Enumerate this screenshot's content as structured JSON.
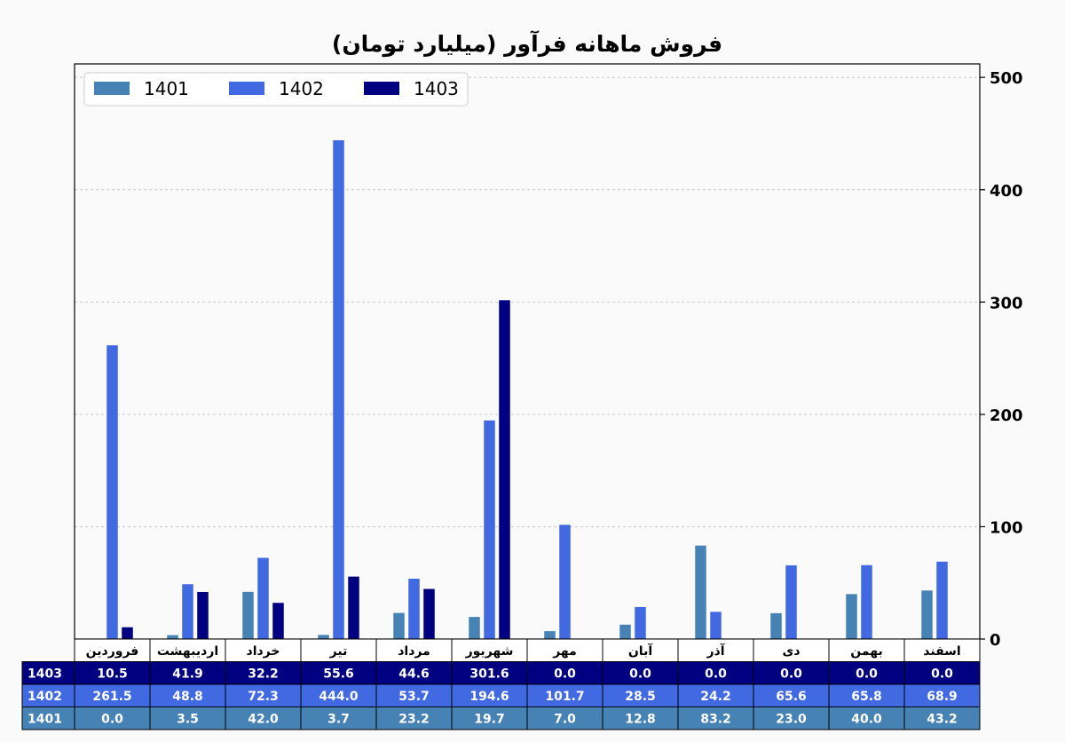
{
  "chart_data": {
    "type": "bar",
    "title": "فروش ماهانه فرآور (میلیارد تومان)",
    "categories": [
      "فروردین",
      "اردیبهشت",
      "خرداد",
      "تیر",
      "مرداد",
      "شهریور",
      "مهر",
      "آبان",
      "آذر",
      "دی",
      "بهمن",
      "اسفند"
    ],
    "series": [
      {
        "name": "1401",
        "color": "#4682b4",
        "values": [
          0.0,
          3.5,
          42.0,
          3.7,
          23.2,
          19.7,
          7.0,
          12.8,
          83.2,
          23.0,
          40.0,
          43.2
        ]
      },
      {
        "name": "1402",
        "color": "#4169e1",
        "values": [
          261.5,
          48.8,
          72.3,
          444.0,
          53.7,
          194.6,
          101.7,
          28.5,
          24.2,
          65.6,
          65.8,
          68.9
        ]
      },
      {
        "name": "1403",
        "color": "#000080",
        "values": [
          10.5,
          41.9,
          32.2,
          55.6,
          44.6,
          301.6,
          0.0,
          0.0,
          0.0,
          0.0,
          0.0,
          0.0
        ]
      }
    ],
    "y_ticks": [
      "0",
      "100",
      "200",
      "300",
      "400",
      "500"
    ],
    "ylim": [
      0,
      512
    ],
    "y_axis_side": "right",
    "grid": "horizontal dashed",
    "legend_position": "top-left",
    "table": {
      "row_order": [
        "1403",
        "1402",
        "1401"
      ],
      "cells": {
        "1403": [
          "10.5",
          "41.9",
          "32.2",
          "55.6",
          "44.6",
          "301.6",
          "0.0",
          "0.0",
          "0.0",
          "0.0",
          "0.0",
          "0.0"
        ],
        "1402": [
          "261.5",
          "48.8",
          "72.3",
          "444.0",
          "53.7",
          "194.6",
          "101.7",
          "28.5",
          "24.2",
          "65.6",
          "65.8",
          "68.9"
        ],
        "1401": [
          "0.0",
          "3.5",
          "42.0",
          "3.7",
          "23.2",
          "19.7",
          "7.0",
          "12.8",
          "83.2",
          "23.0",
          "40.0",
          "43.2"
        ]
      }
    }
  }
}
